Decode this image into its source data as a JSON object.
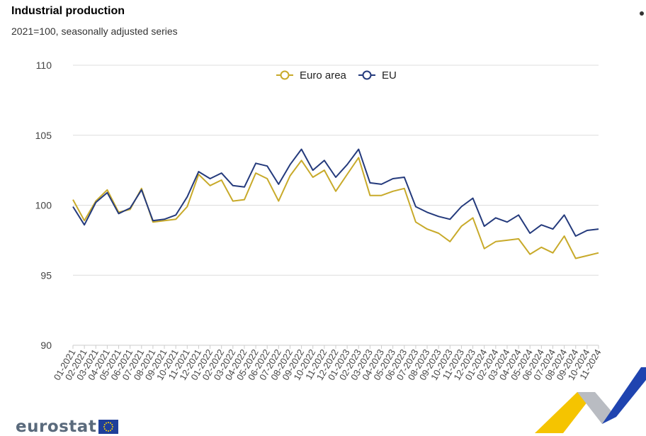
{
  "header": {
    "title": "Industrial production",
    "subtitle": "2021=100, seasonally adjusted series"
  },
  "logo": {
    "text": "eurostat",
    "flag_icon": "eu-flag-icon"
  },
  "colors": {
    "euro_area": "#c8aa2a",
    "eu": "#243a7c",
    "grid": "#dddddd",
    "axis": "#cccccc"
  },
  "chart_data": {
    "type": "line",
    "title": "Industrial production",
    "subtitle": "2021=100, seasonally adjusted series",
    "xlabel": "",
    "ylabel": "",
    "ylim": [
      90,
      110
    ],
    "yticks": [
      90,
      95,
      100,
      105,
      110
    ],
    "grid": true,
    "legend_position": "top",
    "x": [
      "01-2021",
      "02-2021",
      "03-2021",
      "04-2021",
      "05-2021",
      "06-2021",
      "07-2021",
      "08-2021",
      "09-2021",
      "10-2021",
      "11-2021",
      "12-2021",
      "01-2022",
      "02-2022",
      "03-2022",
      "04-2022",
      "05-2022",
      "06-2022",
      "07-2022",
      "08-2022",
      "09-2022",
      "10-2022",
      "11-2022",
      "12-2022",
      "01-2023",
      "02-2023",
      "03-2023",
      "04-2023",
      "05-2023",
      "06-2023",
      "07-2023",
      "08-2023",
      "09-2023",
      "10-2023",
      "11-2023",
      "12-2023",
      "01-2024",
      "02-2024",
      "03-2024",
      "04-2024",
      "05-2024",
      "06-2024",
      "07-2024",
      "08-2024",
      "09-2024",
      "10-2024",
      "11-2024"
    ],
    "series": [
      {
        "name": "Euro area",
        "color": "#c8aa2a",
        "values": [
          100.4,
          98.9,
          100.3,
          101.1,
          99.5,
          99.7,
          101.2,
          98.8,
          98.9,
          99.0,
          99.9,
          102.2,
          101.4,
          101.8,
          100.3,
          100.4,
          102.3,
          101.9,
          100.3,
          102.1,
          103.2,
          102.0,
          102.5,
          101.0,
          102.2,
          103.4,
          100.7,
          100.7,
          101.0,
          101.2,
          98.8,
          98.3,
          98.0,
          97.4,
          98.5,
          99.1,
          96.9,
          97.4,
          97.5,
          97.6,
          96.5,
          97.0,
          96.6,
          97.8,
          96.2,
          96.4,
          96.6
        ]
      },
      {
        "name": "EU",
        "color": "#243a7c",
        "values": [
          99.9,
          98.6,
          100.2,
          100.9,
          99.4,
          99.8,
          101.1,
          98.9,
          99.0,
          99.3,
          100.6,
          102.4,
          101.9,
          102.3,
          101.4,
          101.3,
          103.0,
          102.8,
          101.5,
          102.9,
          104.0,
          102.5,
          103.2,
          102.0,
          102.9,
          104.0,
          101.6,
          101.5,
          101.9,
          102.0,
          99.9,
          99.5,
          99.2,
          99.0,
          99.9,
          100.5,
          98.5,
          99.1,
          98.8,
          99.3,
          98.0,
          98.6,
          98.3,
          99.3,
          97.8,
          98.2,
          98.3
        ]
      }
    ]
  }
}
